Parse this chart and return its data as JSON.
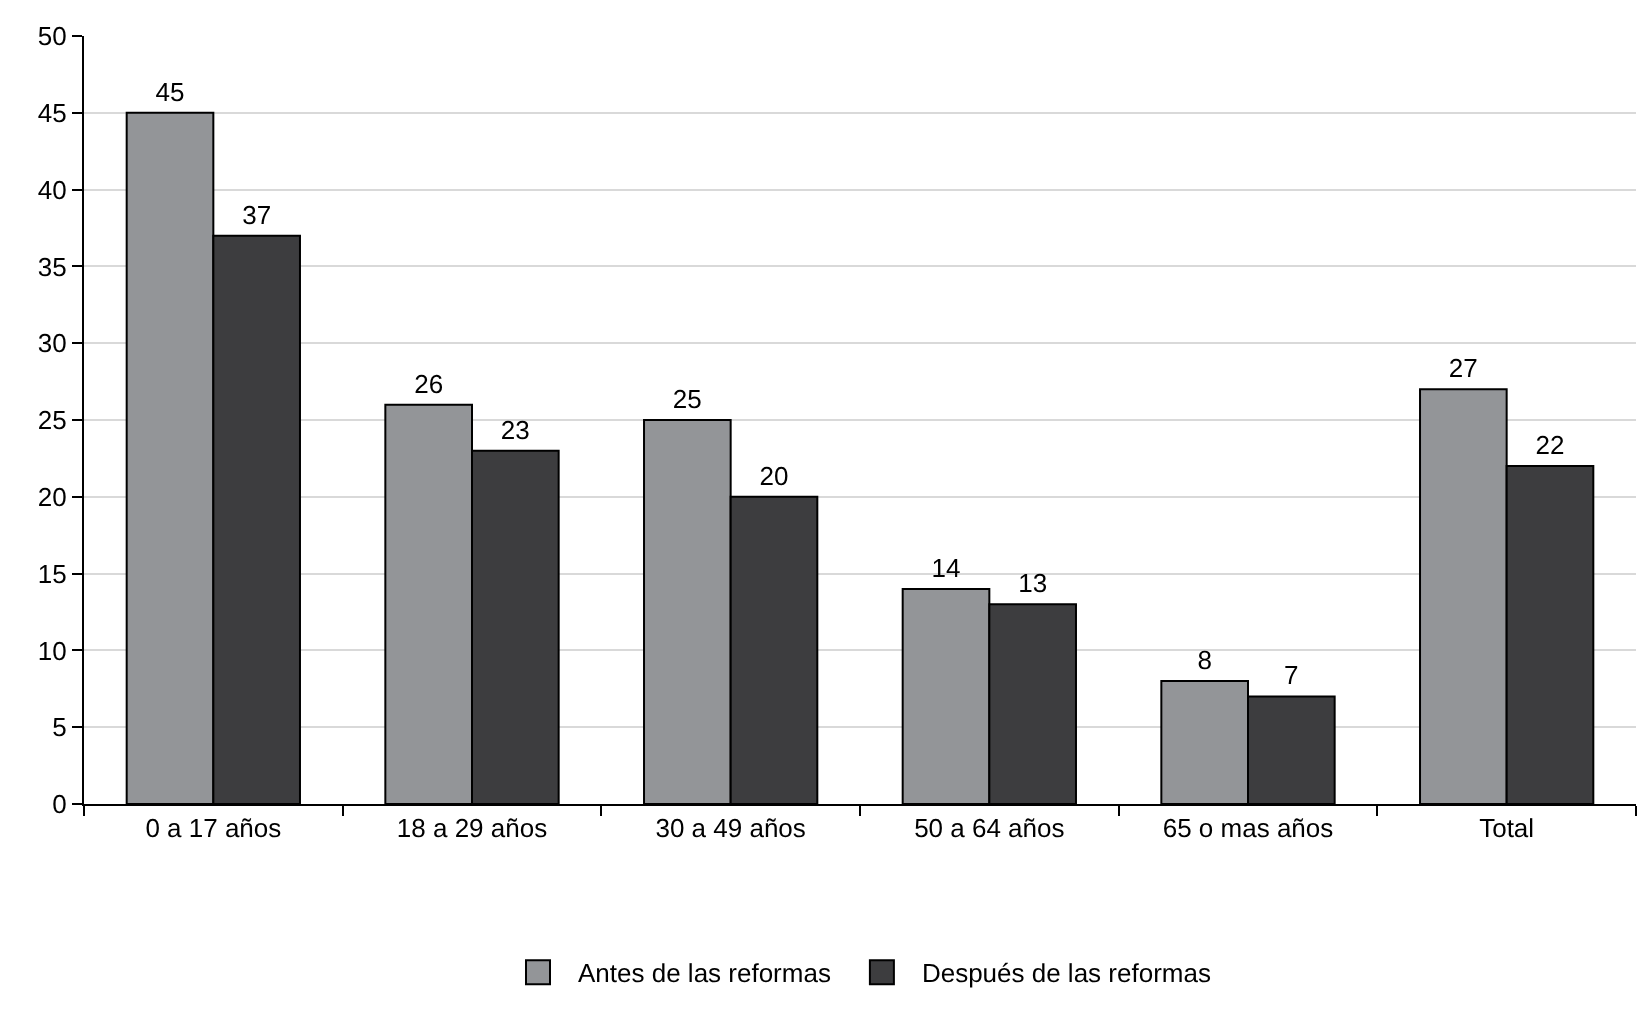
{
  "chart_data": {
    "type": "bar",
    "categories": [
      "0 a 17 años",
      "18 a 29 años",
      "30 a 49 años",
      "50 a 64 años",
      "65 o mas años",
      "Total"
    ],
    "series": [
      {
        "name": "Antes de las reformas",
        "color": "#939598",
        "values": [
          45,
          26,
          25,
          14,
          8,
          27
        ]
      },
      {
        "name": "Después de las reformas",
        "color": "#3d3d3f",
        "values": [
          37,
          23,
          20,
          13,
          7,
          22
        ]
      }
    ],
    "ylim": [
      0,
      50
    ],
    "yticks": [
      0,
      5,
      10,
      15,
      20,
      25,
      30,
      35,
      40,
      45,
      50
    ],
    "grid": "y",
    "legend": "bottom",
    "data_labels": true
  }
}
